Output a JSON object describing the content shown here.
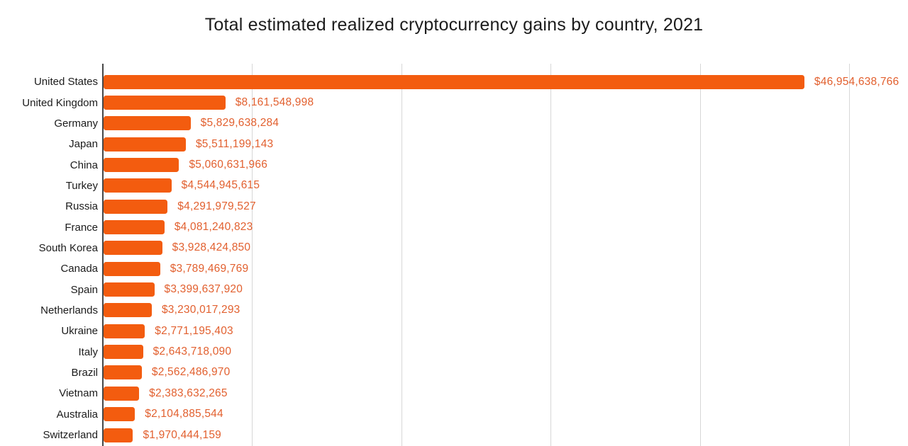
{
  "title": "Total estimated realized cryptocurrency gains by country, 2021",
  "colors": {
    "background": "#ffffff",
    "bar": "#f35c0f",
    "value_label": "#e2602f",
    "country_label": "#1b1b1b",
    "title": "#1c1c1c",
    "gridline": "#d7d7d7",
    "axis_line": "#474747"
  },
  "chart_data": {
    "type": "bar",
    "orientation": "horizontal",
    "title": "Total estimated realized cryptocurrency gains by country, 2021",
    "xlabel": "",
    "ylabel": "",
    "legend": "none",
    "grid": "vertical",
    "xlim": [
      0,
      52750000000
    ],
    "x_gridline_interval": 10000000000,
    "categories": [
      "United States",
      "United Kingdom",
      "Germany",
      "Japan",
      "China",
      "Turkey",
      "Russia",
      "France",
      "South Korea",
      "Canada",
      "Spain",
      "Netherlands",
      "Ukraine",
      "Italy",
      "Brazil",
      "Vietnam",
      "Australia",
      "Switzerland"
    ],
    "values": [
      46954638766,
      8161548998,
      5829638284,
      5511199143,
      5060631966,
      4544945615,
      4291979527,
      4081240823,
      3928424850,
      3789469769,
      3399637920,
      3230017293,
      2771195403,
      2643718090,
      2562486970,
      2383632265,
      2104885544,
      1970444159
    ],
    "value_labels": [
      "$46,954,638,766",
      "$8,161,548,998",
      "$5,829,638,284",
      "$5,511,199,143",
      "$5,060,631,966",
      "$4,544,945,615",
      "$4,291,979,527",
      "$4,081,240,823",
      "$3,928,424,850",
      "$3,789,469,769",
      "$3,399,637,920",
      "$3,230,017,293",
      "$2,771,195,403",
      "$2,643,718,090",
      "$2,562,486,970",
      "$2,383,632,265",
      "$2,104,885,544",
      "$1,970,444,159"
    ]
  }
}
